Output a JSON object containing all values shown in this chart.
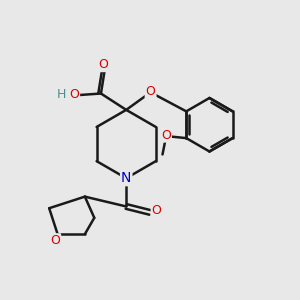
{
  "background_color": "#e8e8e8",
  "bond_color": "#1a1a1a",
  "bond_width": 1.8,
  "atom_colors": {
    "O": "#dd0000",
    "N": "#0000cc",
    "C": "#1a1a1a",
    "H": "#4a9090"
  },
  "font_size": 9,
  "figsize": [
    3.0,
    3.0
  ],
  "dpi": 100,
  "bg": "#e8e8e8"
}
